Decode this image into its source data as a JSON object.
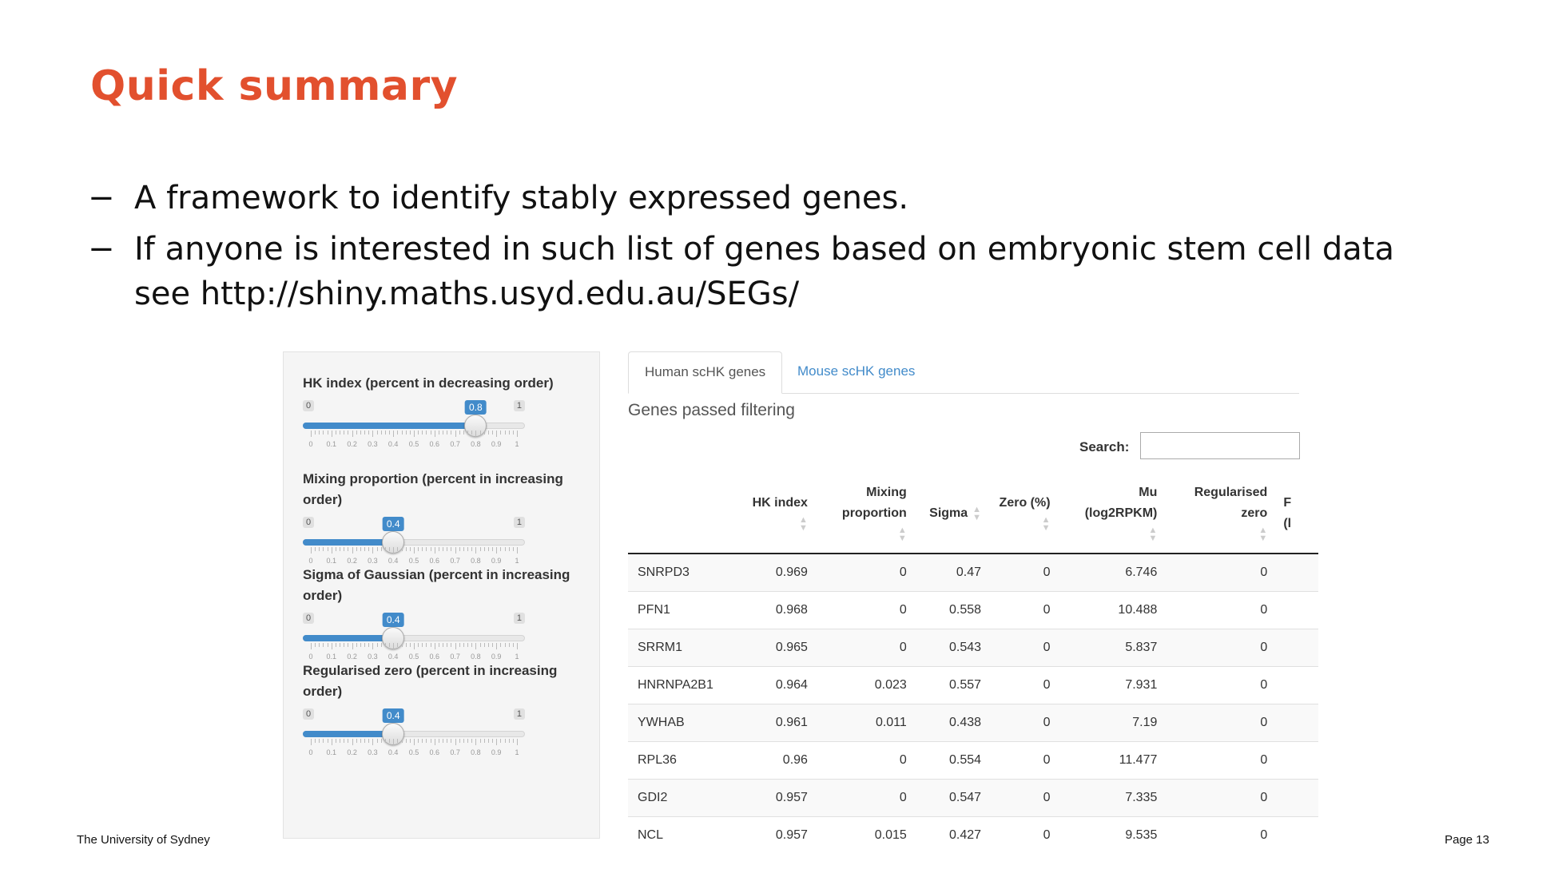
{
  "slide": {
    "title": "Quick summary",
    "bullets": [
      {
        "dash": "−",
        "text": "A framework to identify stably expressed genes."
      },
      {
        "dash": "−",
        "text": "If anyone is interested in such list of genes based on embryonic stem cell data see http://shiny.maths.usyd.edu.au/SEGs/"
      }
    ],
    "footer_left": "The University of Sydney",
    "footer_right": "Page 13"
  },
  "colors": {
    "title": "#e2502e",
    "accent": "#428bca"
  },
  "sidebar": {
    "sliders": [
      {
        "label": "HK index (percent in decreasing order)",
        "min": "0",
        "max": "1",
        "value": 0.8,
        "value_label": "0.8"
      },
      {
        "label": "Mixing proportion (percent in increasing order)",
        "min": "0",
        "max": "1",
        "value": 0.4,
        "value_label": "0.4"
      },
      {
        "label": "Sigma of Gaussian (percent in increasing order)",
        "min": "0",
        "max": "1",
        "value": 0.4,
        "value_label": "0.4"
      },
      {
        "label": "Regularised zero (percent in increasing order)",
        "min": "0",
        "max": "1",
        "value": 0.4,
        "value_label": "0.4"
      }
    ],
    "tick_labels": [
      "0",
      "0.1",
      "0.2",
      "0.3",
      "0.4",
      "0.5",
      "0.6",
      "0.7",
      "0.8",
      "0.9",
      "1"
    ]
  },
  "main": {
    "tabs": [
      {
        "label": "Human scHK genes",
        "active": true
      },
      {
        "label": "Mouse scHK genes",
        "active": false
      }
    ],
    "section_title": "Genes passed filtering",
    "search_label": "Search:",
    "search_value": "",
    "table": {
      "headers": [
        "",
        "HK index",
        "Mixing proportion",
        "Sigma",
        "Zero (%)",
        "Mu (log2RPKM)",
        "Regularised zero",
        "F (l"
      ],
      "rows": [
        [
          "SNRPD3",
          "0.969",
          "0",
          "0.47",
          "0",
          "6.746",
          "0",
          ""
        ],
        [
          "PFN1",
          "0.968",
          "0",
          "0.558",
          "0",
          "10.488",
          "0",
          ""
        ],
        [
          "SRRM1",
          "0.965",
          "0",
          "0.543",
          "0",
          "5.837",
          "0",
          ""
        ],
        [
          "HNRNPA2B1",
          "0.964",
          "0.023",
          "0.557",
          "0",
          "7.931",
          "0",
          ""
        ],
        [
          "YWHAB",
          "0.961",
          "0.011",
          "0.438",
          "0",
          "7.19",
          "0",
          ""
        ],
        [
          "RPL36",
          "0.96",
          "0",
          "0.554",
          "0",
          "11.477",
          "0",
          ""
        ],
        [
          "GDI2",
          "0.957",
          "0",
          "0.547",
          "0",
          "7.335",
          "0",
          ""
        ],
        [
          "NCL",
          "0.957",
          "0.015",
          "0.427",
          "0",
          "9.535",
          "0",
          ""
        ]
      ]
    }
  }
}
